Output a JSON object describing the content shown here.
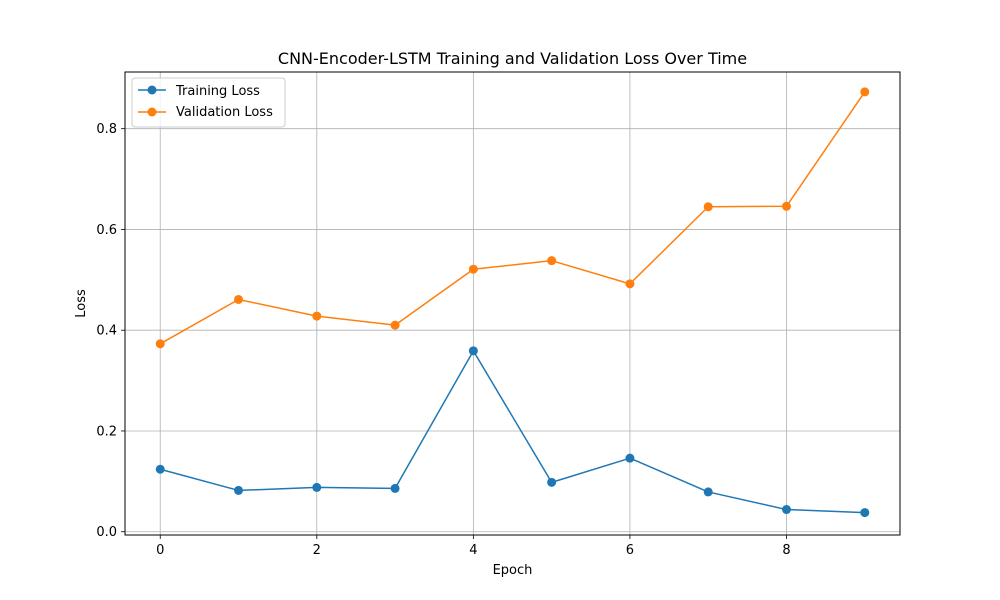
{
  "chart_data": {
    "type": "line",
    "title": "CNN-Encoder-LSTM Training and Validation Loss Over Time",
    "xlabel": "Epoch",
    "ylabel": "Loss",
    "x": [
      0,
      1,
      2,
      3,
      4,
      5,
      6,
      7,
      8,
      9
    ],
    "xlim": [
      -0.45,
      9.45
    ],
    "ylim": [
      -0.0065,
      0.9125
    ],
    "xticks": [
      0,
      2,
      4,
      6,
      8
    ],
    "yticks": [
      0.0,
      0.2,
      0.4,
      0.6,
      0.8
    ],
    "xtick_labels": [
      "0",
      "2",
      "4",
      "6",
      "8"
    ],
    "ytick_labels": [
      "0.0",
      "0.2",
      "0.4",
      "0.6",
      "0.8"
    ],
    "grid": true,
    "legend_position": "top-left",
    "series": [
      {
        "name": "Training Loss",
        "color": "#1f77b4",
        "marker": "circle",
        "values": [
          0.124,
          0.082,
          0.088,
          0.086,
          0.359,
          0.098,
          0.146,
          0.079,
          0.044,
          0.038
        ]
      },
      {
        "name": "Validation Loss",
        "color": "#ff7f0e",
        "marker": "circle",
        "values": [
          0.373,
          0.461,
          0.428,
          0.41,
          0.521,
          0.538,
          0.492,
          0.645,
          0.646,
          0.873
        ]
      }
    ]
  }
}
